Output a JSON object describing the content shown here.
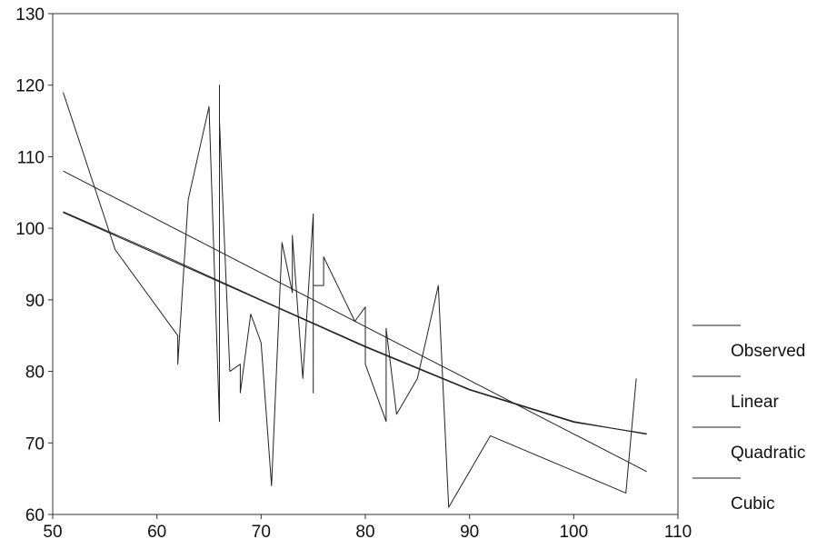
{
  "chart_data": {
    "type": "line",
    "title": "",
    "xlabel": "",
    "ylabel": "",
    "xlim": [
      50,
      110
    ],
    "ylim": [
      60,
      130
    ],
    "x_ticks": [
      50,
      60,
      70,
      80,
      90,
      100,
      110
    ],
    "y_ticks": [
      60,
      70,
      80,
      90,
      100,
      110,
      120,
      130
    ],
    "grid": false,
    "legend_position": "right",
    "series": [
      {
        "name": "Observed",
        "color": "#222222",
        "x": [
          51,
          56,
          62,
          62,
          63,
          65,
          66,
          66,
          66,
          67,
          68,
          68,
          69,
          70,
          71,
          72,
          73,
          73,
          74,
          75,
          75,
          75,
          76,
          76,
          79,
          80,
          80,
          82,
          82,
          83,
          85,
          87,
          88,
          92,
          105,
          106
        ],
        "y": [
          119,
          97,
          85,
          81,
          104,
          117,
          73,
          120,
          115,
          80,
          81,
          77,
          88,
          84,
          64,
          98,
          91,
          99,
          79,
          102,
          77,
          92,
          92,
          96,
          87,
          89,
          81,
          73,
          86,
          74,
          79,
          92,
          61,
          71,
          63,
          79
        ]
      },
      {
        "name": "Linear",
        "color": "#222222",
        "x": [
          51,
          107
        ],
        "y": [
          108,
          66
        ]
      },
      {
        "name": "Quadratic",
        "color": "#222222",
        "x": [
          51,
          60,
          70,
          80,
          90,
          100,
          107
        ],
        "y": [
          102.3,
          96.6,
          90.0,
          83.5,
          77.5,
          73.0,
          71.2
        ]
      },
      {
        "name": "Cubic",
        "color": "#222222",
        "x": [
          51,
          60,
          70,
          80,
          90,
          100,
          107
        ],
        "y": [
          102.2,
          96.4,
          89.9,
          83.4,
          77.4,
          72.9,
          71.3
        ]
      }
    ]
  }
}
